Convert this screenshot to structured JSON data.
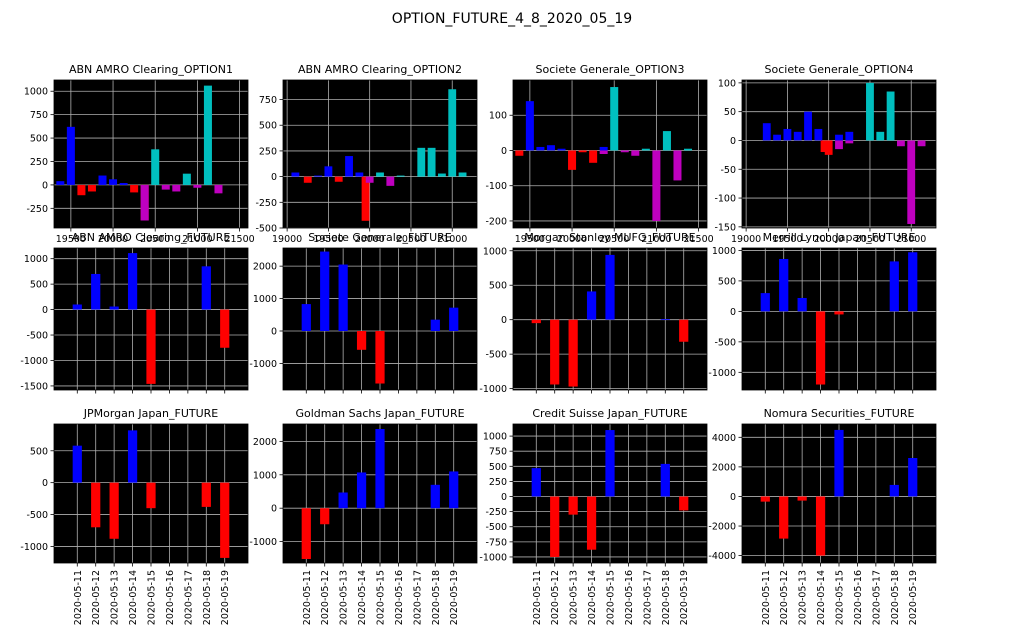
{
  "figure_title": "OPTION_FUTURE_4_8_2020_05_19",
  "colors": {
    "background": "#000000",
    "grid": "#b0b0b0",
    "positive": "#0000ff",
    "negative": "#ff0000",
    "call_positive": "#00bfbf",
    "call_negative": "#bf00bf",
    "axis_text": "#000000"
  },
  "chart_data": [
    {
      "type": "bar",
      "title": "ABN AMRO Clearing_OPTION1",
      "xlabel": "",
      "ylabel": "",
      "x_ticks": [
        19500,
        20000,
        20500,
        21000,
        21500
      ],
      "y_ticks": [
        -250,
        0,
        250,
        500,
        750,
        1000
      ],
      "xlim": [
        19300,
        21600
      ],
      "ylim": [
        -460,
        1120
      ],
      "grid": true,
      "series": [
        {
          "kind": "put",
          "points": [
            [
              19375,
              40
            ],
            [
              19500,
              620
            ],
            [
              19625,
              -110
            ],
            [
              19750,
              -70
            ],
            [
              19875,
              100
            ],
            [
              20000,
              60
            ],
            [
              20125,
              20
            ],
            [
              20250,
              -80
            ],
            [
              20375,
              -380
            ]
          ]
        },
        {
          "kind": "call",
          "points": [
            [
              20375,
              -380
            ],
            [
              20500,
              380
            ],
            [
              20625,
              -50
            ],
            [
              20750,
              -70
            ],
            [
              20875,
              120
            ],
            [
              21000,
              -30
            ],
            [
              21125,
              1060
            ],
            [
              21250,
              -90
            ]
          ]
        }
      ]
    },
    {
      "type": "bar",
      "title": "ABN AMRO Clearing_OPTION2",
      "xlabel": "",
      "ylabel": "",
      "x_ticks": [
        19000,
        19500,
        20000,
        20500,
        21000
      ],
      "y_ticks": [
        -500,
        -250,
        0,
        250,
        500,
        750
      ],
      "xlim": [
        18950,
        21300
      ],
      "ylim": [
        -500,
        940
      ],
      "grid": true,
      "series": [
        {
          "kind": "put",
          "points": [
            [
              19100,
              40
            ],
            [
              19250,
              -60
            ],
            [
              19375,
              10
            ],
            [
              19500,
              100
            ],
            [
              19625,
              -50
            ],
            [
              19750,
              200
            ],
            [
              19875,
              40
            ],
            [
              19950,
              -430
            ]
          ]
        },
        {
          "kind": "call",
          "points": [
            [
              20000,
              -60
            ],
            [
              20125,
              40
            ],
            [
              20250,
              -90
            ],
            [
              20375,
              10
            ],
            [
              20625,
              280
            ],
            [
              20750,
              280
            ],
            [
              20875,
              30
            ],
            [
              21000,
              850
            ],
            [
              21125,
              40
            ]
          ]
        }
      ]
    },
    {
      "type": "bar",
      "title": "Societe Generale_OPTION3",
      "xlabel": "",
      "ylabel": "",
      "x_ticks": [
        19500,
        20000,
        20500,
        21000,
        21500
      ],
      "y_ticks": [
        -200,
        -100,
        0,
        100
      ],
      "xlim": [
        19300,
        21600
      ],
      "ylim": [
        -220,
        200
      ],
      "grid": true,
      "series": [
        {
          "kind": "put",
          "points": [
            [
              19375,
              -15
            ],
            [
              19500,
              140
            ],
            [
              19625,
              10
            ],
            [
              19750,
              15
            ],
            [
              19875,
              5
            ],
            [
              20000,
              -55
            ],
            [
              20125,
              -5
            ],
            [
              20250,
              -35
            ],
            [
              20375,
              10
            ]
          ]
        },
        {
          "kind": "call",
          "points": [
            [
              20375,
              -10
            ],
            [
              20500,
              180
            ],
            [
              20625,
              -5
            ],
            [
              20750,
              -15
            ],
            [
              20875,
              5
            ],
            [
              21000,
              -200
            ],
            [
              21125,
              55
            ],
            [
              21250,
              -85
            ],
            [
              21375,
              5
            ]
          ]
        }
      ]
    },
    {
      "type": "bar",
      "title": "Societe Generale_OPTION4",
      "xlabel": "",
      "ylabel": "",
      "x_ticks": [
        19000,
        19500,
        20000,
        20500,
        21000
      ],
      "y_ticks": [
        -150,
        -100,
        -50,
        0,
        50,
        100
      ],
      "xlim": [
        18950,
        21300
      ],
      "ylim": [
        -152,
        105
      ],
      "grid": true,
      "series": [
        {
          "kind": "put",
          "points": [
            [
              19250,
              30
            ],
            [
              19375,
              10
            ],
            [
              19500,
              20
            ],
            [
              19625,
              15
            ],
            [
              19750,
              50
            ],
            [
              19875,
              20
            ],
            [
              19950,
              -20
            ],
            [
              20000,
              -25
            ],
            [
              20125,
              10
            ],
            [
              20250,
              15
            ]
          ]
        },
        {
          "kind": "call",
          "points": [
            [
              20125,
              -15
            ],
            [
              20250,
              -5
            ],
            [
              20500,
              100
            ],
            [
              20625,
              15
            ],
            [
              20750,
              85
            ],
            [
              20875,
              -10
            ],
            [
              21000,
              -145
            ],
            [
              21125,
              -10
            ]
          ]
        }
      ]
    },
    {
      "type": "bar",
      "title": "ABN AMRO Clearing_FUTURE",
      "xlabel": "",
      "ylabel": "",
      "categories": [
        "2020-05-11",
        "2020-05-12",
        "2020-05-13",
        "2020-05-14",
        "2020-05-15",
        "2020-05-16",
        "2020-05-17",
        "2020-05-18",
        "2020-05-19"
      ],
      "values": [
        100,
        700,
        60,
        1110,
        -1460,
        null,
        null,
        850,
        -750
      ],
      "y_ticks": [
        -1500,
        -1000,
        -500,
        0,
        500,
        1000
      ],
      "ylim": [
        -1580,
        1210
      ],
      "grid": true
    },
    {
      "type": "bar",
      "title": "Societe Generale_FUTURE",
      "xlabel": "",
      "ylabel": "",
      "categories": [
        "2020-05-11",
        "2020-05-12",
        "2020-05-13",
        "2020-05-14",
        "2020-05-15",
        "2020-05-16",
        "2020-05-17",
        "2020-05-18",
        "2020-05-19"
      ],
      "values": [
        830,
        2450,
        2050,
        -580,
        -1620,
        null,
        null,
        350,
        720
      ],
      "y_ticks": [
        -1000,
        0,
        1000,
        2000
      ],
      "ylim": [
        -1820,
        2560
      ],
      "grid": true
    },
    {
      "type": "bar",
      "title": "Morgan Stanley MUFG_FUTURE",
      "xlabel": "",
      "ylabel": "",
      "categories": [
        "2020-05-11",
        "2020-05-12",
        "2020-05-13",
        "2020-05-14",
        "2020-05-15",
        "2020-05-16",
        "2020-05-17",
        "2020-05-18",
        "2020-05-19"
      ],
      "values": [
        -50,
        -940,
        -970,
        410,
        940,
        null,
        null,
        10,
        -320
      ],
      "y_ticks": [
        -1000,
        -500,
        0,
        500,
        1000
      ],
      "ylim": [
        -1020,
        1040
      ],
      "grid": true
    },
    {
      "type": "bar",
      "title": "Merrill Lynch Japan_FUTURE",
      "xlabel": "",
      "ylabel": "",
      "categories": [
        "2020-05-11",
        "2020-05-12",
        "2020-05-13",
        "2020-05-14",
        "2020-05-15",
        "2020-05-16",
        "2020-05-17",
        "2020-05-18",
        "2020-05-19"
      ],
      "values": [
        300,
        860,
        220,
        -1200,
        -50,
        null,
        null,
        820,
        970
      ],
      "y_ticks": [
        -1000,
        -500,
        0,
        500,
        1000
      ],
      "ylim": [
        -1290,
        1040
      ],
      "grid": true
    },
    {
      "type": "bar",
      "title": "JPMorgan Japan_FUTURE",
      "xlabel": "",
      "ylabel": "",
      "categories": [
        "2020-05-11",
        "2020-05-12",
        "2020-05-13",
        "2020-05-14",
        "2020-05-15",
        "2020-05-16",
        "2020-05-17",
        "2020-05-18",
        "2020-05-19"
      ],
      "values": [
        580,
        -700,
        -880,
        820,
        -400,
        null,
        null,
        -380,
        -1180
      ],
      "y_ticks": [
        -1000,
        -500,
        0,
        500
      ],
      "ylim": [
        -1260,
        920
      ],
      "grid": true
    },
    {
      "type": "bar",
      "title": "Goldman Sachs Japan_FUTURE",
      "xlabel": "",
      "ylabel": "",
      "categories": [
        "2020-05-11",
        "2020-05-12",
        "2020-05-13",
        "2020-05-14",
        "2020-05-15",
        "2020-05-16",
        "2020-05-17",
        "2020-05-18",
        "2020-05-19"
      ],
      "values": [
        -1520,
        -480,
        470,
        1070,
        2370,
        null,
        null,
        700,
        1100
      ],
      "y_ticks": [
        -1000,
        0,
        1000,
        2000
      ],
      "ylim": [
        -1640,
        2520
      ],
      "grid": true
    },
    {
      "type": "bar",
      "title": "Credit Suisse Japan_FUTURE",
      "xlabel": "",
      "ylabel": "",
      "categories": [
        "2020-05-11",
        "2020-05-12",
        "2020-05-13",
        "2020-05-14",
        "2020-05-15",
        "2020-05-16",
        "2020-05-17",
        "2020-05-18",
        "2020-05-19"
      ],
      "values": [
        470,
        -1000,
        -300,
        -880,
        1100,
        null,
        null,
        540,
        -230
      ],
      "y_ticks": [
        -1000,
        -750,
        -500,
        -250,
        0,
        250,
        500,
        750,
        1000
      ],
      "ylim": [
        -1100,
        1200
      ],
      "grid": true
    },
    {
      "type": "bar",
      "title": "Nomura Securities_FUTURE",
      "xlabel": "",
      "ylabel": "",
      "categories": [
        "2020-05-11",
        "2020-05-12",
        "2020-05-13",
        "2020-05-14",
        "2020-05-15",
        "2020-05-16",
        "2020-05-17",
        "2020-05-18",
        "2020-05-19"
      ],
      "values": [
        -350,
        -2850,
        -280,
        -4000,
        4500,
        null,
        null,
        780,
        2600
      ],
      "y_ticks": [
        -4000,
        -2000,
        0,
        2000,
        4000
      ],
      "ylim": [
        -4500,
        4900
      ],
      "grid": true
    }
  ]
}
